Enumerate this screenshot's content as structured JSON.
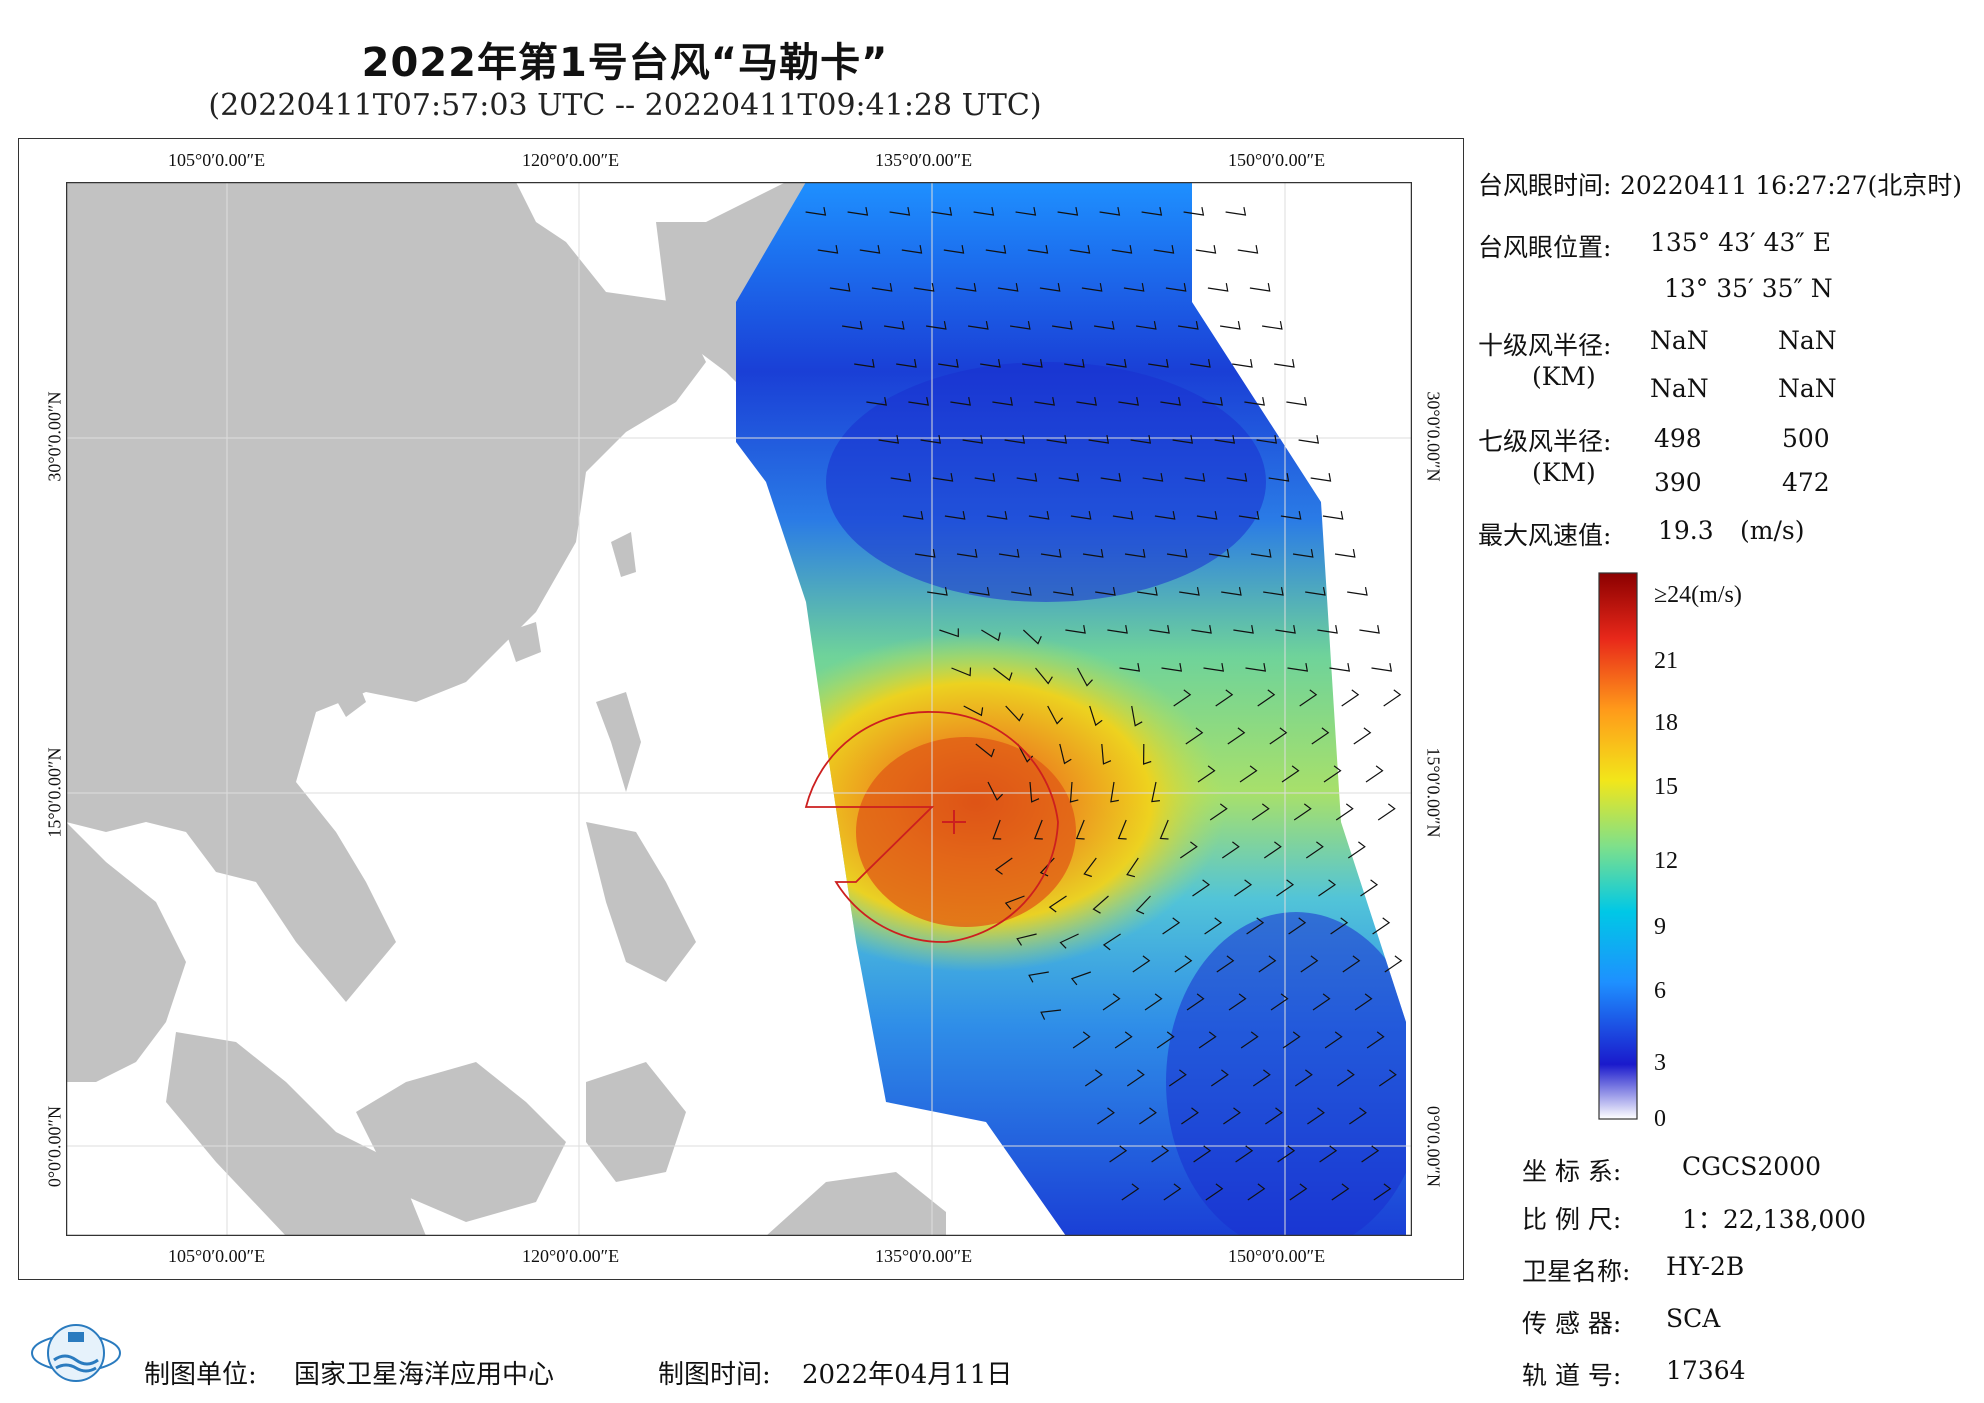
{
  "title": "2022年第1号台风“马勒卡”",
  "subtitle": "(20220411T07:57:03 UTC -- 20220411T09:41:28 UTC)",
  "map": {
    "lon_labels": [
      "105°0′0.00″E",
      "120°0′0.00″E",
      "135°0′0.00″E",
      "150°0′0.00″E"
    ],
    "lat_labels": [
      "30°0′0.00″N",
      "15°0′0.00″N",
      "0°0′0.00″N"
    ],
    "colors": {
      "land": "#c2c2c2",
      "sea": "#ffffff",
      "grid": "#dddddd",
      "radius_circle": "#cc1f1f"
    },
    "typhoon_center": {
      "lon": 135.73,
      "lat": 13.59
    },
    "icons": [
      "wind-barb-icon",
      "typhoon-center-icon"
    ]
  },
  "info": {
    "eye_time_label": "台风眼时间:",
    "eye_time_value": "20220411 16:27:27(北京时)",
    "eye_pos_label": "台风眼位置:",
    "eye_lon": "135° 43′ 43″ E",
    "eye_lat": "13° 35′ 35″ N",
    "r10_label": "十级风半径:",
    "km_label": "(KM)",
    "r10_values": [
      "NaN",
      "NaN",
      "NaN",
      "NaN"
    ],
    "r7_label": "七级风半径:",
    "r7_values": [
      "498",
      "500",
      "390",
      "472"
    ],
    "max_wind_label": "最大风速值:",
    "max_wind_value": "19.3",
    "max_wind_unit": "(m/s)"
  },
  "colorbar": {
    "top_label": "≥24(m/s)",
    "ticks": [
      "21",
      "18",
      "15",
      "12",
      "9",
      "6",
      "3",
      "0"
    ],
    "range": [
      0,
      24
    ],
    "stops": [
      "#ffffff",
      "#1a1acc",
      "#1e90ff",
      "#00c8e6",
      "#7fe08a",
      "#f2e61a",
      "#ff9a1a",
      "#e8281a",
      "#8b0000"
    ]
  },
  "meta": {
    "crs_label": "坐 标 系:",
    "crs_value": "CGCS2000",
    "scale_label": "比 例 尺:",
    "scale_value": "1：22,138,000",
    "sat_label": "卫星名称:",
    "sat_value": "HY-2B",
    "sensor_label": "传 感 器:",
    "sensor_value": "SCA",
    "orbit_label": "轨 道 号:",
    "orbit_value": "17364"
  },
  "footer": {
    "unit_label": "制图单位:",
    "unit_value": "国家卫星海洋应用中心",
    "date_label": "制图时间:",
    "date_value": "2022年04月11日"
  }
}
